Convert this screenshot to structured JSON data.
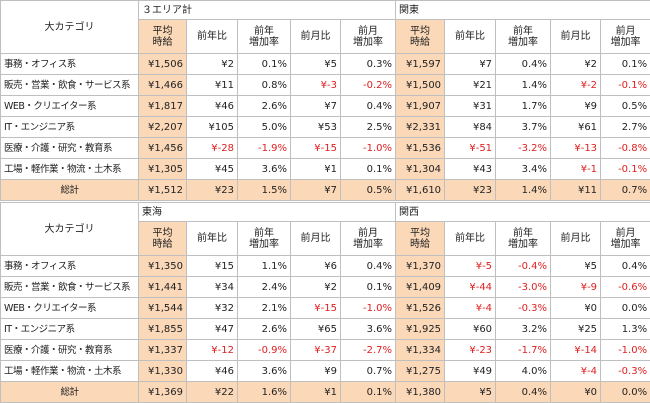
{
  "tables": [
    {
      "category_header": "大カテゴリ",
      "regions": [
        "３エリア計",
        "関東"
      ],
      "sub_headers": [
        "平均\n時給",
        "前年比",
        "前年\n増加率",
        "前月比",
        "前月\n増加率",
        "平均\n時給",
        "前年比",
        "前年\n増加率",
        "前月比",
        "前月\n増加率"
      ],
      "rows": [
        {
          "category": "事務・オフィス系",
          "cells": [
            "¥1,506",
            "¥2",
            "0.1%",
            "¥5",
            "0.3%",
            "¥1,597",
            "¥7",
            "0.4%",
            "¥2",
            "0.1%"
          ]
        },
        {
          "category": "販売・営業・飲食・サービス系",
          "cells": [
            "¥1,466",
            "¥11",
            "0.8%",
            "¥-3",
            "-0.2%",
            "¥1,500",
            "¥21",
            "1.4%",
            "¥-2",
            "-0.1%"
          ]
        },
        {
          "category": "WEB・クリエイター系",
          "cells": [
            "¥1,817",
            "¥46",
            "2.6%",
            "¥7",
            "0.4%",
            "¥1,907",
            "¥31",
            "1.7%",
            "¥9",
            "0.5%"
          ]
        },
        {
          "category": "IT・エンジニア系",
          "cells": [
            "¥2,207",
            "¥105",
            "5.0%",
            "¥53",
            "2.5%",
            "¥2,331",
            "¥84",
            "3.7%",
            "¥61",
            "2.7%"
          ]
        },
        {
          "category": "医療・介護・研究・教育系",
          "cells": [
            "¥1,456",
            "¥-28",
            "-1.9%",
            "¥-15",
            "-1.0%",
            "¥1,536",
            "¥-51",
            "-3.2%",
            "¥-13",
            "-0.8%"
          ]
        },
        {
          "category": "工場・軽作業・物流・土木系",
          "cells": [
            "¥1,305",
            "¥45",
            "3.6%",
            "¥1",
            "0.1%",
            "¥1,304",
            "¥43",
            "3.4%",
            "¥-1",
            "-0.1%"
          ]
        }
      ],
      "total": {
        "category": "総計",
        "cells": [
          "¥1,512",
          "¥23",
          "1.5%",
          "¥7",
          "0.5%",
          "¥1,610",
          "¥23",
          "1.4%",
          "¥11",
          "0.7%"
        ]
      }
    },
    {
      "category_header": "大カテゴリ",
      "regions": [
        "東海",
        "関西"
      ],
      "sub_headers": [
        "平均\n時給",
        "前年比",
        "前年\n増加率",
        "前月比",
        "前月\n増加率",
        "平均\n時給",
        "前年比",
        "前年\n増加率",
        "前月比",
        "前月\n増加率"
      ],
      "rows": [
        {
          "category": "事務・オフィス系",
          "cells": [
            "¥1,350",
            "¥15",
            "1.1%",
            "¥6",
            "0.4%",
            "¥1,370",
            "¥-5",
            "-0.4%",
            "¥5",
            "0.4%"
          ]
        },
        {
          "category": "販売・営業・飲食・サービス系",
          "cells": [
            "¥1,441",
            "¥34",
            "2.4%",
            "¥2",
            "0.1%",
            "¥1,409",
            "¥-44",
            "-3.0%",
            "¥-9",
            "-0.6%"
          ]
        },
        {
          "category": "WEB・クリエイター系",
          "cells": [
            "¥1,544",
            "¥32",
            "2.1%",
            "¥-15",
            "-1.0%",
            "¥1,526",
            "¥-4",
            "-0.3%",
            "¥0",
            "0.0%"
          ]
        },
        {
          "category": "IT・エンジニア系",
          "cells": [
            "¥1,855",
            "¥47",
            "2.6%",
            "¥65",
            "3.6%",
            "¥1,925",
            "¥60",
            "3.2%",
            "¥25",
            "1.3%"
          ]
        },
        {
          "category": "医療・介護・研究・教育系",
          "cells": [
            "¥1,337",
            "¥-12",
            "-0.9%",
            "¥-37",
            "-2.7%",
            "¥1,334",
            "¥-23",
            "-1.7%",
            "¥-14",
            "-1.0%"
          ]
        },
        {
          "category": "工場・軽作業・物流・土木系",
          "cells": [
            "¥1,330",
            "¥46",
            "3.6%",
            "¥9",
            "0.7%",
            "¥1,275",
            "¥49",
            "4.0%",
            "¥-4",
            "-0.3%"
          ]
        }
      ],
      "total": {
        "category": "総計",
        "cells": [
          "¥1,369",
          "¥22",
          "1.6%",
          "¥1",
          "0.1%",
          "¥1,380",
          "¥5",
          "0.4%",
          "¥0",
          "0.0%"
        ]
      }
    }
  ],
  "colors": {
    "highlight": "#fbd8b8",
    "negative": "#e02020",
    "border": "#bfbfbf"
  }
}
